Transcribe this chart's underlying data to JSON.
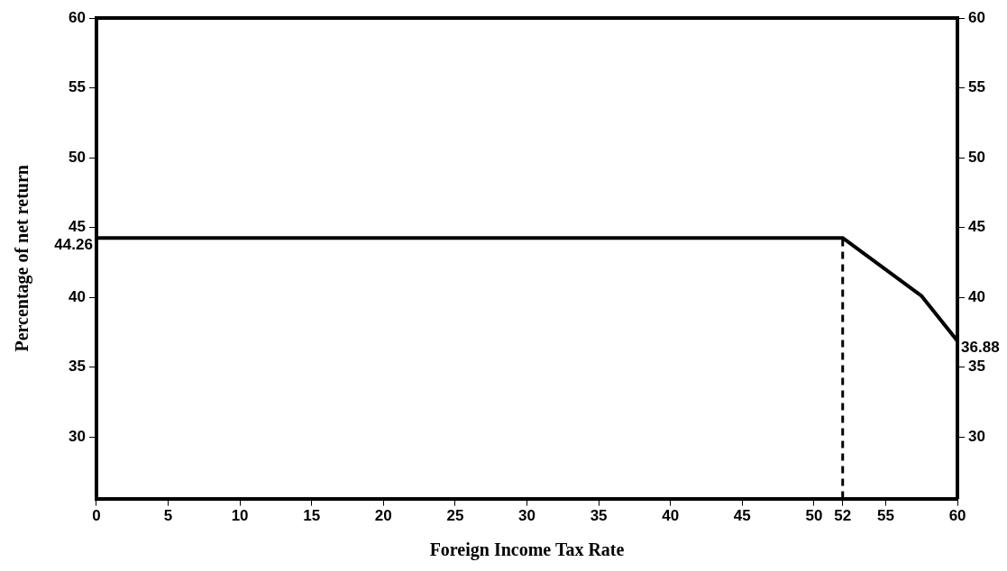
{
  "chart_data": {
    "type": "line",
    "xlabel": "Foreign Income Tax Rate",
    "ylabel": "Percentage of net return",
    "x": [
      0,
      52,
      57.5,
      60
    ],
    "series": [
      {
        "color": "#000000",
        "values": [
          44.26,
          44.26,
          40.1,
          36.88
        ]
      }
    ],
    "xlim": [
      0,
      60
    ],
    "xticks": [
      0,
      5,
      10,
      15,
      20,
      25,
      30,
      35,
      40,
      45,
      50,
      52,
      55,
      60
    ],
    "ylim": [
      25.6,
      60
    ],
    "yticks": [
      30,
      35,
      40,
      45,
      50,
      55,
      60
    ],
    "y2lim": [
      25.6,
      60
    ],
    "y2ticks": [
      30,
      35,
      40,
      45,
      50,
      55,
      60
    ],
    "ref_lines": [
      {
        "axis": "x",
        "value": 52,
        "line_style": "dashed",
        "color": "#000000"
      }
    ],
    "annotations": [
      {
        "text": "44.26",
        "x": 0,
        "y": 44.26
      },
      {
        "text": "36.88",
        "x": 60,
        "y": 36.88
      }
    ],
    "grid": false,
    "legend": false,
    "marker": "none",
    "line_style": "solid"
  }
}
